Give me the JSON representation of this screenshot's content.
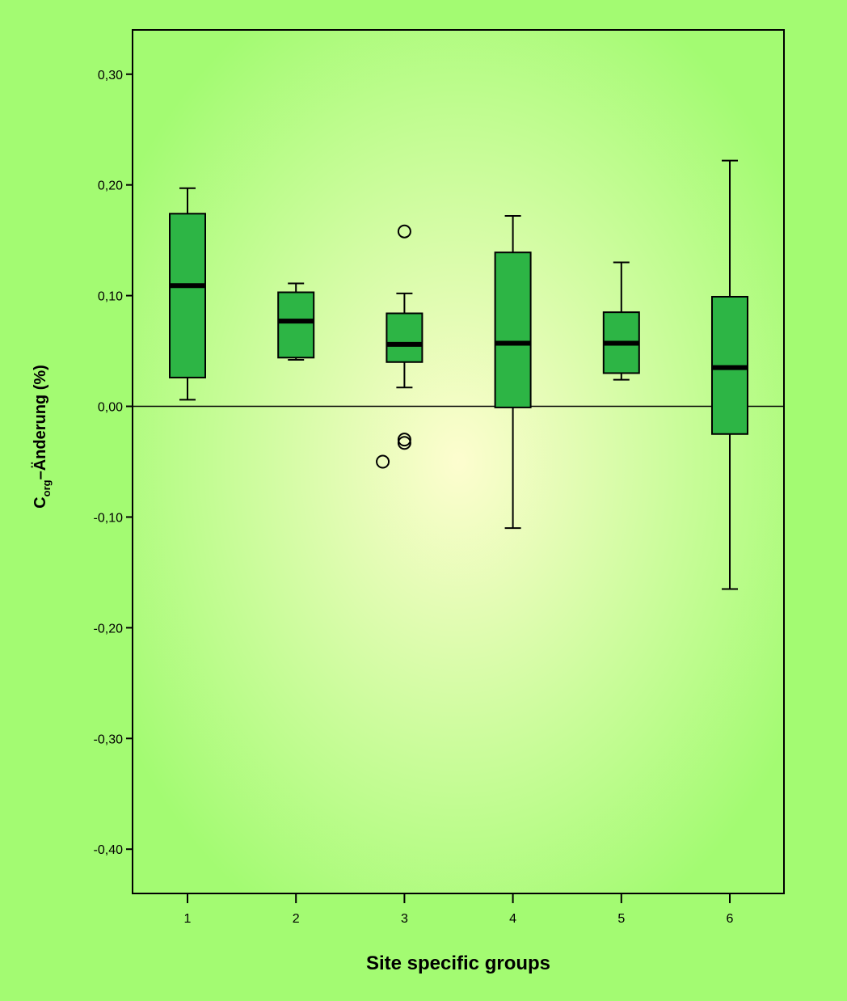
{
  "chart_data": {
    "type": "boxplot",
    "xlabel": "Site specific groups",
    "ylabel": {
      "prefix": "C",
      "subscript": "org",
      "suffix": "–Änderung (%)"
    },
    "ylim": [
      -0.44,
      0.34
    ],
    "y_ticks": [
      {
        "value": 0.3,
        "label": "0,30"
      },
      {
        "value": 0.2,
        "label": "0,20"
      },
      {
        "value": 0.1,
        "label": "0,10"
      },
      {
        "value": 0.0,
        "label": "0,00"
      },
      {
        "value": -0.1,
        "label": "-0,10"
      },
      {
        "value": -0.2,
        "label": "-0,20"
      },
      {
        "value": -0.3,
        "label": "-0,30"
      },
      {
        "value": -0.4,
        "label": "-0,40"
      }
    ],
    "reference_line": 0.0,
    "grid": false,
    "box_color": "#2db545",
    "plot_bg_center": "#fdfdcf",
    "plot_bg_edge": "#a3fb72",
    "categories": [
      "1",
      "2",
      "3",
      "4",
      "5",
      "6"
    ],
    "boxes": [
      {
        "category": "1",
        "whisker_low": 0.006,
        "q1": 0.026,
        "median": 0.109,
        "q3": 0.174,
        "whisker_high": 0.197,
        "outliers": []
      },
      {
        "category": "2",
        "whisker_low": 0.042,
        "q1": 0.044,
        "median": 0.077,
        "q3": 0.103,
        "whisker_high": 0.111,
        "outliers": []
      },
      {
        "category": "3",
        "whisker_low": 0.017,
        "q1": 0.04,
        "median": 0.056,
        "q3": 0.084,
        "whisker_high": 0.102,
        "outliers": [
          0.158,
          -0.03,
          -0.033
        ]
      },
      {
        "category": "4",
        "whisker_low": -0.11,
        "q1": -0.001,
        "median": 0.057,
        "q3": 0.139,
        "whisker_high": 0.172,
        "outliers": []
      },
      {
        "category": "5",
        "whisker_low": 0.024,
        "q1": 0.03,
        "median": 0.057,
        "q3": 0.085,
        "whisker_high": 0.13,
        "outliers": []
      },
      {
        "category": "6",
        "whisker_low": -0.165,
        "q1": -0.025,
        "median": 0.035,
        "q3": 0.099,
        "whisker_high": 0.222,
        "outliers": []
      }
    ],
    "extra_outliers": [
      {
        "between": [
          "2",
          "3"
        ],
        "position": 0.8,
        "value": -0.05
      }
    ]
  }
}
